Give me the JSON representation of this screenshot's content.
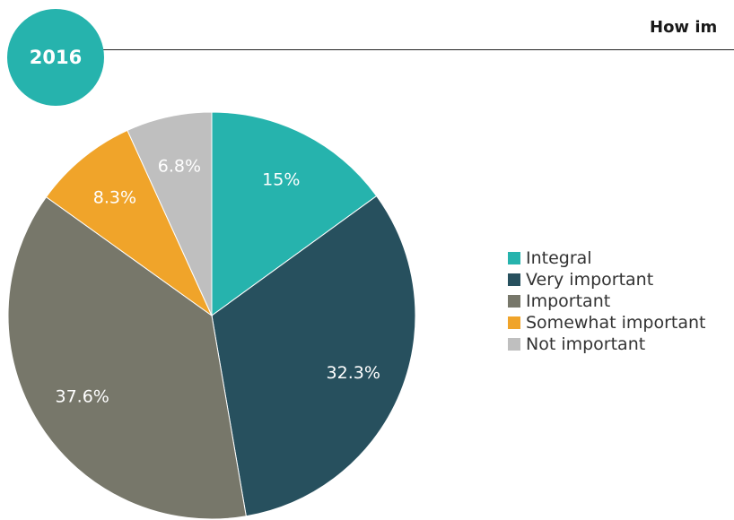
{
  "badge": {
    "year": "2016",
    "color": "#26b3ad"
  },
  "title": "How im",
  "chart_data": {
    "type": "pie",
    "title": "How im",
    "legend_position": "right",
    "slices": [
      {
        "name": "Integral",
        "value": 15,
        "label": "15%",
        "color": "#26b3ad"
      },
      {
        "name": "Very important",
        "value": 32.3,
        "label": "32.3%",
        "color": "#27505e"
      },
      {
        "name": "Important",
        "value": 37.6,
        "label": "37.6%",
        "color": "#77776a"
      },
      {
        "name": "Somewhat important",
        "value": 8.3,
        "label": "8.3%",
        "color": "#f0a42a"
      },
      {
        "name": "Not important",
        "value": 6.8,
        "label": "6.8%",
        "color": "#bfbfbf"
      }
    ]
  }
}
